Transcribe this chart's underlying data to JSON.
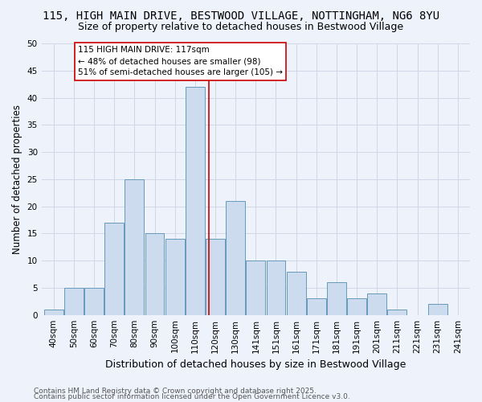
{
  "title": "115, HIGH MAIN DRIVE, BESTWOOD VILLAGE, NOTTINGHAM, NG6 8YU",
  "subtitle": "Size of property relative to detached houses in Bestwood Village",
  "xlabel": "Distribution of detached houses by size in Bestwood Village",
  "ylabel": "Number of detached properties",
  "bar_labels": [
    "40sqm",
    "50sqm",
    "60sqm",
    "70sqm",
    "80sqm",
    "90sqm",
    "100sqm",
    "110sqm",
    "120sqm",
    "130sqm",
    "141sqm",
    "151sqm",
    "161sqm",
    "171sqm",
    "181sqm",
    "191sqm",
    "201sqm",
    "211sqm",
    "221sqm",
    "231sqm",
    "241sqm"
  ],
  "bar_values": [
    1,
    5,
    5,
    17,
    25,
    15,
    14,
    42,
    14,
    21,
    10,
    10,
    8,
    3,
    6,
    3,
    4,
    1,
    0,
    2,
    0
  ],
  "bar_color": "#ccdcee",
  "bar_edge_color": "#6699bb",
  "highlight_bar_index": 7,
  "vline_color": "#cc0000",
  "annotation_text": "115 HIGH MAIN DRIVE: 117sqm\n← 48% of detached houses are smaller (98)\n51% of semi-detached houses are larger (105) →",
  "annotation_box_color": "#ffffff",
  "annotation_box_edge": "#cc0000",
  "ylim": [
    0,
    50
  ],
  "yticks": [
    0,
    5,
    10,
    15,
    20,
    25,
    30,
    35,
    40,
    45,
    50
  ],
  "grid_color": "#d0d8e8",
  "background_color": "#eef2fb",
  "footer1": "Contains HM Land Registry data © Crown copyright and database right 2025.",
  "footer2": "Contains public sector information licensed under the Open Government Licence v3.0.",
  "title_fontsize": 10,
  "subtitle_fontsize": 9,
  "xlabel_fontsize": 9,
  "ylabel_fontsize": 8.5,
  "tick_fontsize": 7.5,
  "annotation_fontsize": 7.5,
  "footer_fontsize": 6.5
}
